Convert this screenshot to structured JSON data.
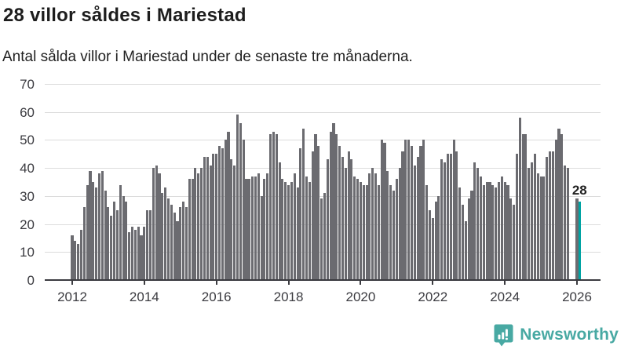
{
  "header": {
    "title": "28 villor såldes i Mariestad",
    "subtitle": "Antal sålda villor i Mariestad under de senaste tre månaderna."
  },
  "chart_data": {
    "type": "bar",
    "title": "28 villor såldes i Mariestad",
    "subtitle": "Antal sålda villor i Mariestad under de senaste tre månaderna.",
    "x_start": "2012-01",
    "x_unit": "month",
    "x_tick_labels": [
      "2012",
      "2014",
      "2016",
      "2018",
      "2020",
      "2022",
      "2024",
      "2026"
    ],
    "y_ticks": [
      0,
      10,
      20,
      30,
      40,
      50,
      60,
      70
    ],
    "ylim": [
      0,
      70
    ],
    "grid": true,
    "bar_color": "#6b6b70",
    "highlight_color": "#00a3a3",
    "highlight_index": 169,
    "highlight_label": "28",
    "values": [
      16,
      14,
      13,
      18,
      26,
      34,
      39,
      35,
      33,
      38,
      39,
      32,
      26,
      23,
      28,
      25,
      34,
      30,
      28,
      17,
      19,
      18,
      19,
      16,
      19,
      25,
      25,
      40,
      41,
      38,
      31,
      33,
      29,
      27,
      24,
      21,
      26,
      28,
      26,
      36,
      36,
      40,
      38,
      40,
      44,
      44,
      41,
      45,
      45,
      48,
      47,
      50,
      53,
      43,
      41,
      59,
      56,
      50,
      36,
      36,
      37,
      37,
      38,
      30,
      36,
      38,
      52,
      53,
      52,
      42,
      36,
      35,
      34,
      35,
      38,
      33,
      47,
      54,
      37,
      35,
      46,
      52,
      48,
      29,
      31,
      43,
      53,
      56,
      52,
      48,
      44,
      40,
      46,
      43,
      37,
      36,
      35,
      34,
      34,
      38,
      40,
      38,
      34,
      50,
      49,
      39,
      34,
      32,
      36,
      40,
      46,
      50,
      50,
      48,
      41,
      44,
      48,
      50,
      34,
      25,
      22,
      28,
      30,
      43,
      42,
      45,
      45,
      50,
      46,
      33,
      27,
      21,
      29,
      32,
      42,
      40,
      37,
      34,
      35,
      35,
      34,
      33,
      35,
      37,
      35,
      34,
      29,
      27,
      45,
      58,
      52,
      52,
      40,
      42,
      45,
      38,
      37,
      37,
      44,
      46,
      46,
      50,
      54,
      52,
      41,
      40,
      null,
      null,
      29,
      28
    ]
  },
  "annotation": {
    "label": "28"
  },
  "footer": {
    "brand": "Newsworthy"
  },
  "colors": {
    "bar_gray": "#6b6b70",
    "accent_teal": "#00a3a3",
    "logo_teal": "#48a9a3",
    "text_dark": "#1d1d1d",
    "grid": "#dcdcdc",
    "axis": "#3b3b40"
  }
}
